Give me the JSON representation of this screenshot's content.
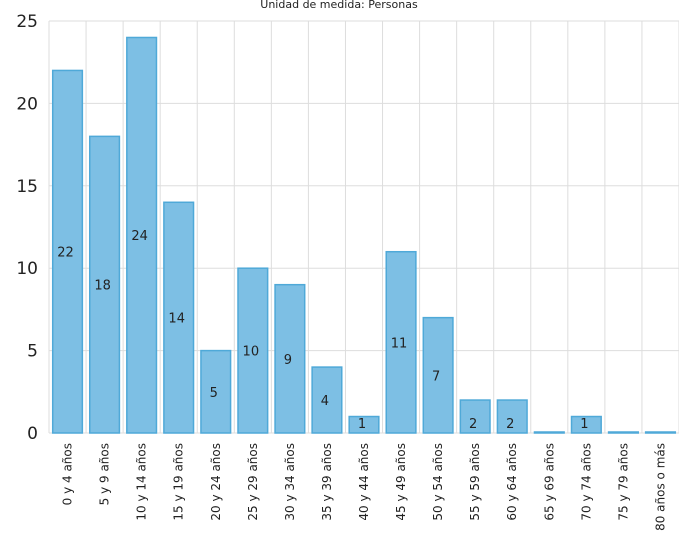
{
  "chart_data": {
    "type": "bar",
    "subtitle": "Unidad de medida: Personas",
    "categories": [
      "0 y 4 años",
      "5 y 9 años",
      "10 y 14 años",
      "15 y 19 años",
      "20 y 24 años",
      "25 y 29 años",
      "30 y 34 años",
      "35 y 39 años",
      "40 y 44 años",
      "45 y 49 años",
      "50 y 54 años",
      "55 y 59 años",
      "60 y 64 años",
      "65 y 69 años",
      "70 y 74 años",
      "75 y 79 años",
      "80 años o más"
    ],
    "values": [
      22,
      18,
      24,
      14,
      5,
      10,
      9,
      4,
      1,
      11,
      7,
      2,
      2,
      0,
      1,
      0,
      0
    ],
    "data_labels": [
      "22",
      "18",
      "24",
      "14",
      "5",
      "10",
      "9",
      "4",
      "1",
      "11",
      "7",
      "2",
      "2",
      "",
      "1",
      "",
      ""
    ],
    "y_ticks": [
      "0",
      "5",
      "10",
      "15",
      "20",
      "25"
    ],
    "ylim": [
      0,
      25
    ],
    "grid": true,
    "colors": {
      "bar_fill": "#7dbfe4",
      "bar_stroke": "#4fa9d8",
      "grid": "#dddddd"
    }
  }
}
